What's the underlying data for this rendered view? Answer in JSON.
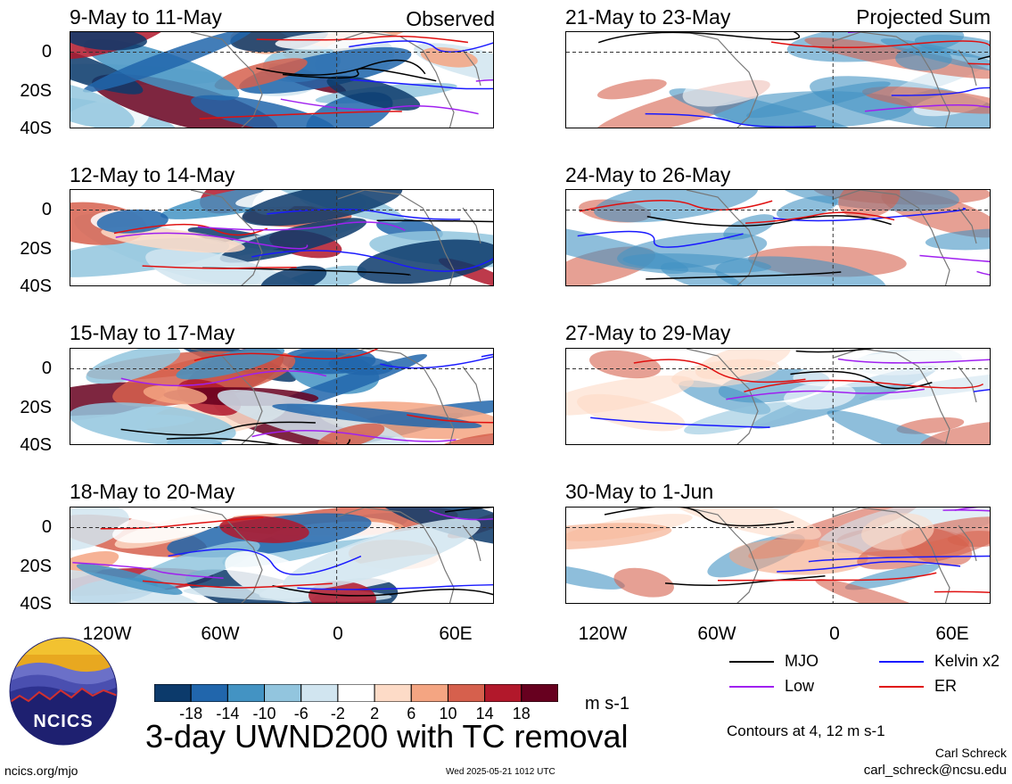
{
  "panels_left": [
    {
      "title": "9-May to 11-May",
      "tag": "Observed"
    },
    {
      "title": "12-May to 14-May",
      "tag": ""
    },
    {
      "title": "15-May to 17-May",
      "tag": ""
    },
    {
      "title": "18-May to 20-May",
      "tag": ""
    }
  ],
  "panels_right": [
    {
      "title": "21-May to 23-May",
      "tag": "Projected Sum"
    },
    {
      "title": "24-May to 26-May",
      "tag": ""
    },
    {
      "title": "27-May to 29-May",
      "tag": ""
    },
    {
      "title": "30-May to 1-Jun",
      "tag": ""
    }
  ],
  "y_ticks": [
    "0",
    "20S",
    "40S"
  ],
  "x_ticks": [
    "120W",
    "60W",
    "0",
    "60E"
  ],
  "legend": {
    "mjo": "MJO",
    "kelvin": "Kelvin x2",
    "low": "Low",
    "er": "ER",
    "colors": {
      "mjo": "#000000",
      "kelvin": "#1a1aff",
      "low": "#a020f0",
      "er": "#e01010"
    }
  },
  "colorbar": {
    "labels": [
      "-18",
      "-14",
      "-10",
      "-6",
      "-2",
      "2",
      "6",
      "10",
      "14",
      "18"
    ],
    "colors": [
      "#0c3a6b",
      "#2166ac",
      "#4393c3",
      "#92c5de",
      "#d1e5f0",
      "#ffffff",
      "#fddbc7",
      "#f4a582",
      "#d6604d",
      "#b2182b",
      "#67001f"
    ],
    "units": "m s-1"
  },
  "main_title": "3-day UWND200 with TC removal",
  "contours_note": "Contours at 4, 12 m s-1",
  "author": "Carl Schreck",
  "email": "carl_schreck@ncsu.edu",
  "site": "ncics.org/mjo",
  "timestamp": "Wed 2025-05-21 1012 UTC",
  "logo_text": "NCICS"
}
